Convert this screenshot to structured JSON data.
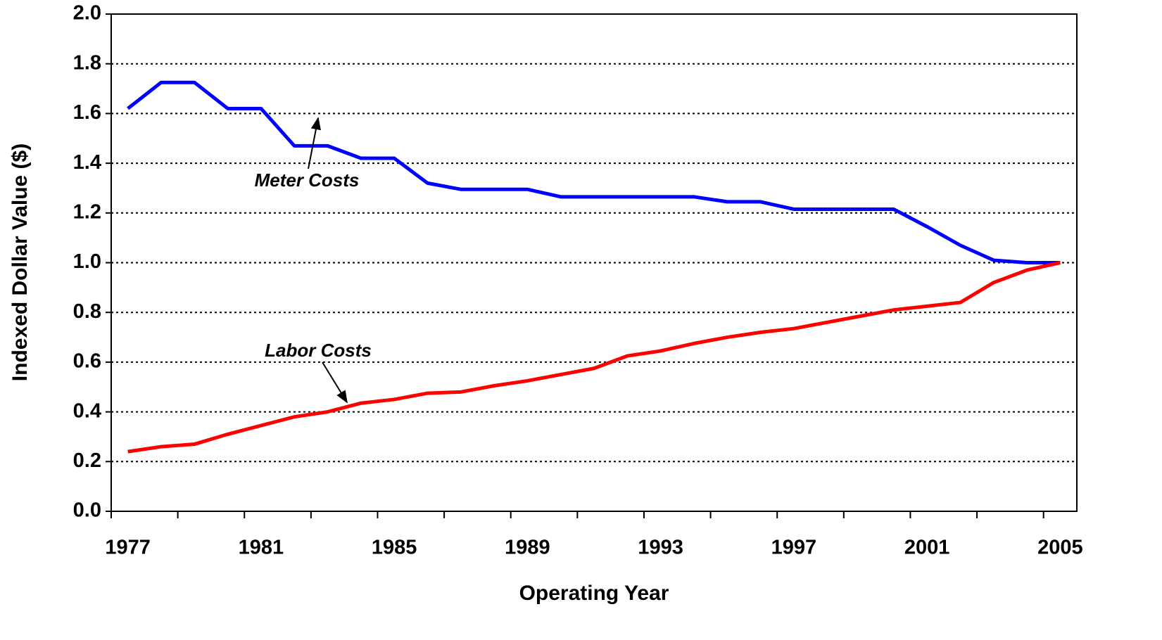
{
  "chart_data": {
    "type": "line",
    "xlabel": "Operating Year",
    "ylabel": "Indexed Dollar Value ($)",
    "categories": [
      "1977",
      null,
      null,
      null,
      "1981",
      null,
      null,
      null,
      "1985",
      null,
      null,
      null,
      "1989",
      null,
      null,
      null,
      "1993",
      null,
      null,
      null,
      "1997",
      null,
      null,
      null,
      "2001",
      null,
      null,
      null,
      "2005"
    ],
    "series": [
      {
        "name": "Meter Costs",
        "color": "#0000ff",
        "values": [
          1.62,
          1.725,
          1.725,
          1.62,
          1.62,
          1.47,
          1.47,
          1.42,
          1.42,
          1.32,
          1.295,
          1.295,
          1.295,
          1.265,
          1.265,
          1.265,
          1.265,
          1.265,
          1.245,
          1.245,
          1.215,
          1.215,
          1.215,
          1.215,
          1.145,
          1.07,
          1.01,
          1.0,
          1.0
        ]
      },
      {
        "name": "Labor Costs",
        "color": "#ff0000",
        "values": [
          0.24,
          0.26,
          0.27,
          0.31,
          0.345,
          0.38,
          0.4,
          0.435,
          0.45,
          0.475,
          0.48,
          0.505,
          0.525,
          0.55,
          0.575,
          0.625,
          0.645,
          0.675,
          0.7,
          0.72,
          0.735,
          0.76,
          0.785,
          0.81,
          0.825,
          0.84,
          0.92,
          0.97,
          1.0
        ]
      }
    ],
    "annotations": [
      {
        "text": "Meter Costs"
      },
      {
        "text": "Labor Costs"
      }
    ],
    "ylim": [
      0,
      2
    ],
    "yticks": [
      {
        "value": 0,
        "label": "0.0"
      },
      0.2,
      0.4,
      0.6,
      0.8,
      {
        "value": 1,
        "label": "1.0"
      },
      1.2,
      1.4,
      1.6,
      1.8,
      {
        "value": 2,
        "label": "2.0"
      }
    ],
    "grid": true
  }
}
